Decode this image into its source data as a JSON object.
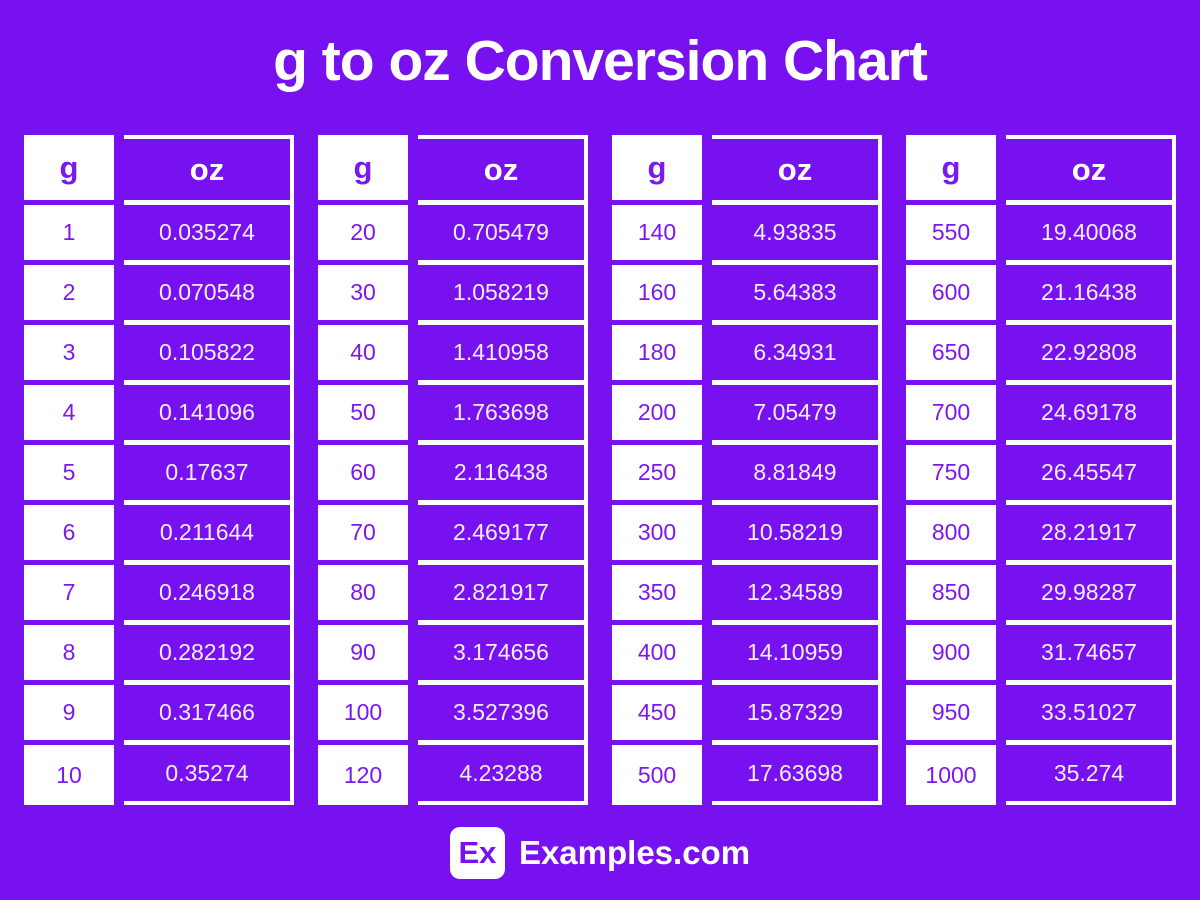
{
  "title": "g to oz Conversion Chart",
  "header": {
    "g": "g",
    "oz": "oz"
  },
  "footer": {
    "logo_text": "Ex",
    "site_name": "Examples.com"
  },
  "colors": {
    "background": "#7711F0",
    "cell_purple": "#7711F0",
    "g_text": "#7B18F0",
    "oz_text": "#F4EEFC",
    "white": "#FFFFFF"
  },
  "chart_data": {
    "type": "table",
    "title": "g to oz Conversion Chart",
    "columns": [
      "g",
      "oz"
    ],
    "tables": [
      {
        "rows": [
          [
            "1",
            "0.035274"
          ],
          [
            "2",
            "0.070548"
          ],
          [
            "3",
            "0.105822"
          ],
          [
            "4",
            "0.141096"
          ],
          [
            "5",
            "0.17637"
          ],
          [
            "6",
            "0.211644"
          ],
          [
            "7",
            "0.246918"
          ],
          [
            "8",
            "0.282192"
          ],
          [
            "9",
            "0.317466"
          ],
          [
            "10",
            "0.35274"
          ]
        ]
      },
      {
        "rows": [
          [
            "20",
            "0.705479"
          ],
          [
            "30",
            "1.058219"
          ],
          [
            "40",
            "1.410958"
          ],
          [
            "50",
            "1.763698"
          ],
          [
            "60",
            "2.116438"
          ],
          [
            "70",
            "2.469177"
          ],
          [
            "80",
            "2.821917"
          ],
          [
            "90",
            "3.174656"
          ],
          [
            "100",
            "3.527396"
          ],
          [
            "120",
            "4.23288"
          ]
        ]
      },
      {
        "rows": [
          [
            "140",
            "4.93835"
          ],
          [
            "160",
            "5.64383"
          ],
          [
            "180",
            "6.34931"
          ],
          [
            "200",
            "7.05479"
          ],
          [
            "250",
            "8.81849"
          ],
          [
            "300",
            "10.58219"
          ],
          [
            "350",
            "12.34589"
          ],
          [
            "400",
            "14.10959"
          ],
          [
            "450",
            "15.87329"
          ],
          [
            "500",
            "17.63698"
          ]
        ]
      },
      {
        "rows": [
          [
            "550",
            "19.40068"
          ],
          [
            "600",
            "21.16438"
          ],
          [
            "650",
            "22.92808"
          ],
          [
            "700",
            "24.69178"
          ],
          [
            "750",
            "26.45547"
          ],
          [
            "800",
            "28.21917"
          ],
          [
            "850",
            "29.98287"
          ],
          [
            "900",
            "31.74657"
          ],
          [
            "950",
            "33.51027"
          ],
          [
            "1000",
            "35.274"
          ]
        ]
      }
    ]
  }
}
